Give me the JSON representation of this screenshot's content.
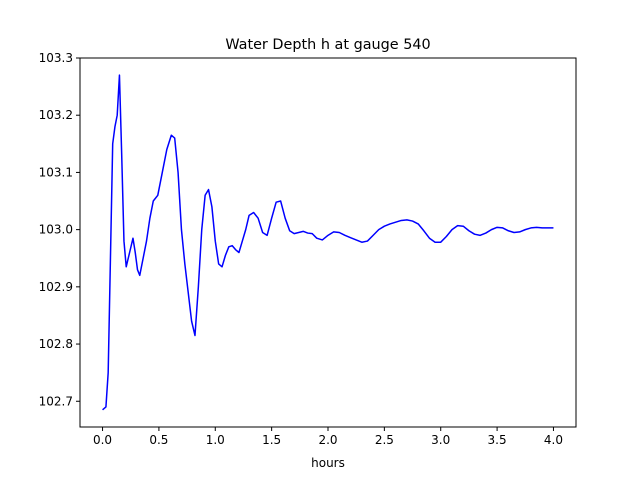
{
  "chart_data": {
    "type": "line",
    "title": "Water Depth h at gauge 540",
    "xlabel": "hours",
    "ylabel": "",
    "xlim": [
      -0.2,
      4.2
    ],
    "ylim": [
      102.655,
      103.3
    ],
    "xticks": [
      0.0,
      0.5,
      1.0,
      1.5,
      2.0,
      2.5,
      3.0,
      3.5,
      4.0
    ],
    "xtick_labels": [
      "0.0",
      "0.5",
      "1.0",
      "1.5",
      "2.0",
      "2.5",
      "3.0",
      "3.5",
      "4.0"
    ],
    "yticks": [
      102.7,
      102.8,
      102.9,
      103.0,
      103.1,
      103.2,
      103.3
    ],
    "ytick_labels": [
      "102.7",
      "102.8",
      "102.9",
      "103.0",
      "103.1",
      "103.2",
      "103.3"
    ],
    "grid": false,
    "legend": "none",
    "series": [
      {
        "color": "#0000ff",
        "x": [
          0.0,
          0.03,
          0.05,
          0.07,
          0.09,
          0.11,
          0.13,
          0.15,
          0.17,
          0.19,
          0.21,
          0.24,
          0.27,
          0.29,
          0.31,
          0.33,
          0.36,
          0.39,
          0.42,
          0.45,
          0.49,
          0.53,
          0.57,
          0.61,
          0.64,
          0.67,
          0.7,
          0.73,
          0.76,
          0.79,
          0.82,
          0.85,
          0.88,
          0.91,
          0.94,
          0.97,
          1.0,
          1.03,
          1.06,
          1.09,
          1.12,
          1.15,
          1.18,
          1.21,
          1.24,
          1.27,
          1.3,
          1.34,
          1.38,
          1.42,
          1.46,
          1.5,
          1.54,
          1.58,
          1.62,
          1.66,
          1.7,
          1.74,
          1.78,
          1.82,
          1.86,
          1.9,
          1.95,
          2.0,
          2.05,
          2.1,
          2.15,
          2.2,
          2.25,
          2.3,
          2.35,
          2.4,
          2.45,
          2.5,
          2.55,
          2.6,
          2.65,
          2.7,
          2.75,
          2.8,
          2.85,
          2.9,
          2.95,
          3.0,
          3.05,
          3.1,
          3.15,
          3.2,
          3.25,
          3.3,
          3.35,
          3.4,
          3.45,
          3.5,
          3.55,
          3.6,
          3.65,
          3.7,
          3.75,
          3.8,
          3.85,
          3.9,
          3.95,
          4.0
        ],
        "y": [
          102.685,
          102.69,
          102.75,
          102.95,
          103.15,
          103.18,
          103.2,
          103.27,
          103.13,
          102.98,
          102.935,
          102.96,
          102.985,
          102.96,
          102.93,
          102.92,
          102.95,
          102.98,
          103.02,
          103.05,
          103.06,
          103.1,
          103.14,
          103.165,
          103.16,
          103.1,
          103.0,
          102.94,
          102.89,
          102.84,
          102.815,
          102.9,
          103.0,
          103.06,
          103.07,
          103.04,
          102.98,
          102.94,
          102.935,
          102.955,
          102.97,
          102.972,
          102.965,
          102.96,
          102.98,
          103.0,
          103.025,
          103.03,
          103.02,
          102.995,
          102.99,
          103.02,
          103.048,
          103.05,
          103.02,
          102.998,
          102.993,
          102.995,
          102.997,
          102.994,
          102.993,
          102.985,
          102.982,
          102.99,
          102.996,
          102.995,
          102.99,
          102.986,
          102.982,
          102.978,
          102.98,
          102.99,
          103.0,
          103.006,
          103.01,
          103.013,
          103.016,
          103.017,
          103.015,
          103.01,
          102.998,
          102.985,
          102.978,
          102.978,
          102.988,
          103.0,
          103.007,
          103.006,
          102.998,
          102.992,
          102.99,
          102.994,
          103.0,
          103.004,
          103.003,
          102.998,
          102.995,
          102.996,
          103.0,
          103.003,
          103.004,
          103.003,
          103.003,
          103.003
        ]
      }
    ]
  }
}
